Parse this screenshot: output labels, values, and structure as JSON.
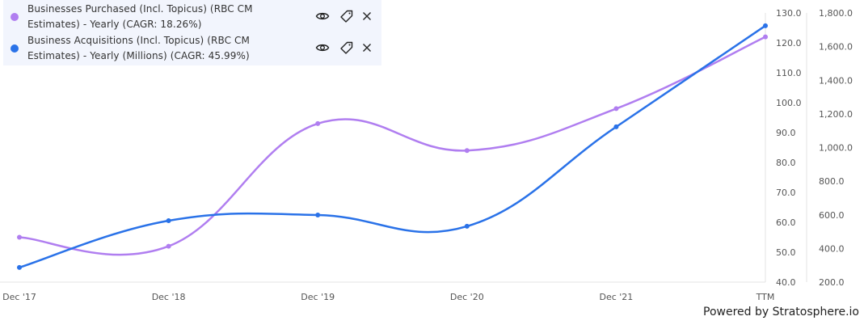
{
  "legend": [
    {
      "label": "Businesses Purchased (Incl. Topicus) (RBC CM Estimates) - Yearly (CAGR: 18.26%)",
      "color": "#b07ef0"
    },
    {
      "label": "Business Acquisitions (Incl. Topicus) (RBC CM Estimates) - Yearly (Millions) (CAGR: 45.99%)",
      "color": "#2a72e8"
    }
  ],
  "legend_icons": [
    "eye-icon",
    "tag-icon",
    "close-icon"
  ],
  "footer": "Powered by Stratosphere.io",
  "chart_data": {
    "type": "line",
    "categories": [
      "Dec '17",
      "Dec '18",
      "Dec '19",
      "Dec '20",
      "Dec '21",
      "TTM"
    ],
    "series": [
      {
        "name": "Businesses Purchased (Incl. Topicus) (RBC CM Estimates) - Yearly (CAGR: 18.26%)",
        "axis": "left",
        "color": "#b07ef0",
        "values": [
          55,
          52,
          93,
          84,
          98,
          122
        ]
      },
      {
        "name": "Business Acquisitions (Incl. Topicus) (RBC CM Estimates) - Yearly (Millions) (CAGR: 45.99%)",
        "axis": "right",
        "color": "#2a72e8",
        "values": [
          287,
          565,
          599,
          532,
          1123,
          1724
        ]
      }
    ],
    "y_left": {
      "range": [
        40,
        130
      ],
      "ticks": [
        "130.0",
        "120.0",
        "110.0",
        "100.0",
        "90.0",
        "80.0",
        "70.0",
        "60.0",
        "50.0",
        "40.0"
      ]
    },
    "y_right": {
      "range": [
        200,
        1800
      ],
      "ticks": [
        "1,800.0",
        "1,600.0",
        "1,400.0",
        "1,200.0",
        "1,000.0",
        "800.0",
        "600.0",
        "400.0",
        "200.0"
      ]
    },
    "smooth": true,
    "grid": false,
    "legend_position": "top-left"
  }
}
